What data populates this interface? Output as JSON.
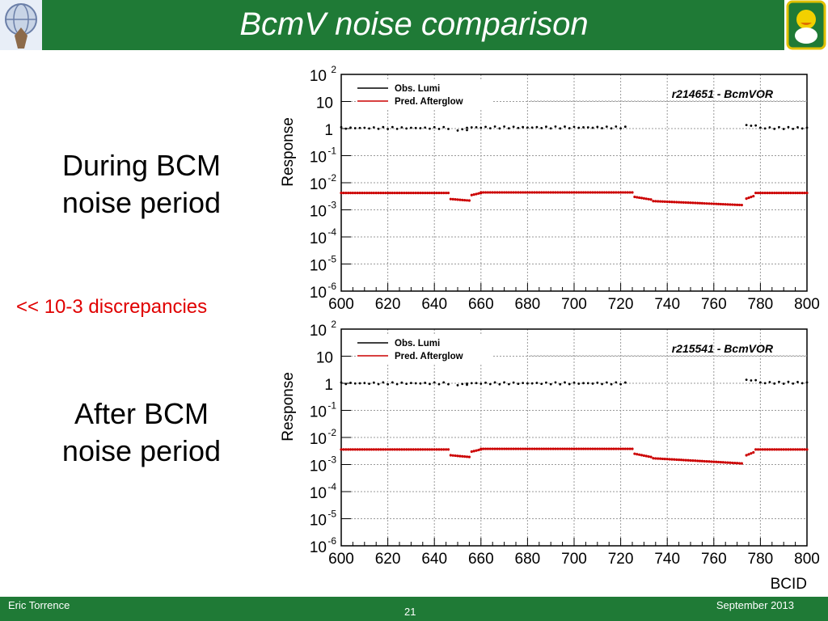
{
  "slide": {
    "title": "BcmV noise comparison",
    "label_top_line1": "During BCM",
    "label_top_line2": "noise period",
    "label_bottom_line1": "After BCM",
    "label_bottom_line2": "noise period",
    "discrepancy_note": "<< 10-3 discrepancies"
  },
  "footer": {
    "author": "Eric Torrence",
    "page": "21",
    "date": "September 2013"
  },
  "colors": {
    "header_green": "#1f7a36",
    "obs_series": "#000000",
    "pred_series": "#cc0000",
    "note_red": "#e00000"
  },
  "chart_data": [
    {
      "type": "scatter",
      "title": "r214651 - BcmVOR",
      "xlabel": "",
      "ylabel": "Response",
      "xlim": [
        600,
        800
      ],
      "ylim": [
        1e-06,
        100
      ],
      "log_y": true,
      "grid": true,
      "legend_position": "top-left",
      "x_ticks": [
        "600",
        "620",
        "640",
        "660",
        "680",
        "700",
        "720",
        "740",
        "760",
        "780",
        "800"
      ],
      "y_ticks": [
        {
          "base": "10",
          "exp": "-6"
        },
        {
          "base": "10",
          "exp": "-5"
        },
        {
          "base": "10",
          "exp": "-4"
        },
        {
          "base": "10",
          "exp": "-3"
        },
        {
          "base": "10",
          "exp": "-2"
        },
        {
          "base": "10",
          "exp": "-1"
        },
        {
          "base": "1",
          "exp": ""
        },
        {
          "base": "10",
          "exp": ""
        },
        {
          "base": "10",
          "exp": "2"
        }
      ],
      "series": [
        {
          "name": "Obs. Lumi",
          "color": "#000000",
          "segments": [
            {
              "x0": 600,
              "x1": 646,
              "y": 1.05
            },
            {
              "x0": 650,
              "x1": 654,
              "y": 0.9
            },
            {
              "x0": 654,
              "x1": 722,
              "y": 1.1
            },
            {
              "x0": 773,
              "x1": 779,
              "y": 1.3
            },
            {
              "x0": 779,
              "x1": 800,
              "y": 1.05
            }
          ]
        },
        {
          "name": "Pred. Afterglow",
          "color": "#cc0000",
          "segments": [
            {
              "x0": 600,
              "x1": 646,
              "y0": 0.0042,
              "y1": 0.0042
            },
            {
              "x0": 647,
              "x1": 655,
              "y0": 0.0025,
              "y1": 0.0022
            },
            {
              "x0": 656,
              "x1": 660,
              "y0": 0.0035,
              "y1": 0.0042
            },
            {
              "x0": 660,
              "x1": 725,
              "y0": 0.0044,
              "y1": 0.0044
            },
            {
              "x0": 726,
              "x1": 733,
              "y0": 0.003,
              "y1": 0.0024
            },
            {
              "x0": 734,
              "x1": 772,
              "y0": 0.0021,
              "y1": 0.0015
            },
            {
              "x0": 774,
              "x1": 777,
              "y0": 0.0026,
              "y1": 0.0032
            },
            {
              "x0": 778,
              "x1": 800,
              "y0": 0.0042,
              "y1": 0.0042
            }
          ]
        }
      ]
    },
    {
      "type": "scatter",
      "title": "r215541 - BcmVOR",
      "xlabel": "BCID",
      "ylabel": "Response",
      "xlim": [
        600,
        800
      ],
      "ylim": [
        1e-06,
        100
      ],
      "log_y": true,
      "grid": true,
      "legend_position": "top-left",
      "x_ticks": [
        "600",
        "620",
        "640",
        "660",
        "680",
        "700",
        "720",
        "740",
        "760",
        "780",
        "800"
      ],
      "y_ticks": [
        {
          "base": "10",
          "exp": "-6"
        },
        {
          "base": "10",
          "exp": "-5"
        },
        {
          "base": "10",
          "exp": "-4"
        },
        {
          "base": "10",
          "exp": "-3"
        },
        {
          "base": "10",
          "exp": "-2"
        },
        {
          "base": "10",
          "exp": "-1"
        },
        {
          "base": "1",
          "exp": ""
        },
        {
          "base": "10",
          "exp": ""
        },
        {
          "base": "10",
          "exp": "2"
        }
      ],
      "series": [
        {
          "name": "Obs. Lumi",
          "color": "#000000",
          "segments": [
            {
              "x0": 600,
              "x1": 646,
              "y": 1.0
            },
            {
              "x0": 650,
              "x1": 654,
              "y": 0.9
            },
            {
              "x0": 654,
              "x1": 722,
              "y": 1.0
            },
            {
              "x0": 773,
              "x1": 779,
              "y": 1.3
            },
            {
              "x0": 779,
              "x1": 800,
              "y": 1.05
            }
          ]
        },
        {
          "name": "Pred. Afterglow",
          "color": "#cc0000",
          "segments": [
            {
              "x0": 600,
              "x1": 646,
              "y0": 0.0036,
              "y1": 0.0036
            },
            {
              "x0": 647,
              "x1": 655,
              "y0": 0.0022,
              "y1": 0.0019
            },
            {
              "x0": 656,
              "x1": 660,
              "y0": 0.003,
              "y1": 0.0036
            },
            {
              "x0": 660,
              "x1": 725,
              "y0": 0.0038,
              "y1": 0.0038
            },
            {
              "x0": 726,
              "x1": 733,
              "y0": 0.0025,
              "y1": 0.0019
            },
            {
              "x0": 734,
              "x1": 772,
              "y0": 0.0017,
              "y1": 0.0011
            },
            {
              "x0": 774,
              "x1": 777,
              "y0": 0.0022,
              "y1": 0.0028
            },
            {
              "x0": 778,
              "x1": 800,
              "y0": 0.0036,
              "y1": 0.0036
            }
          ]
        }
      ]
    }
  ]
}
